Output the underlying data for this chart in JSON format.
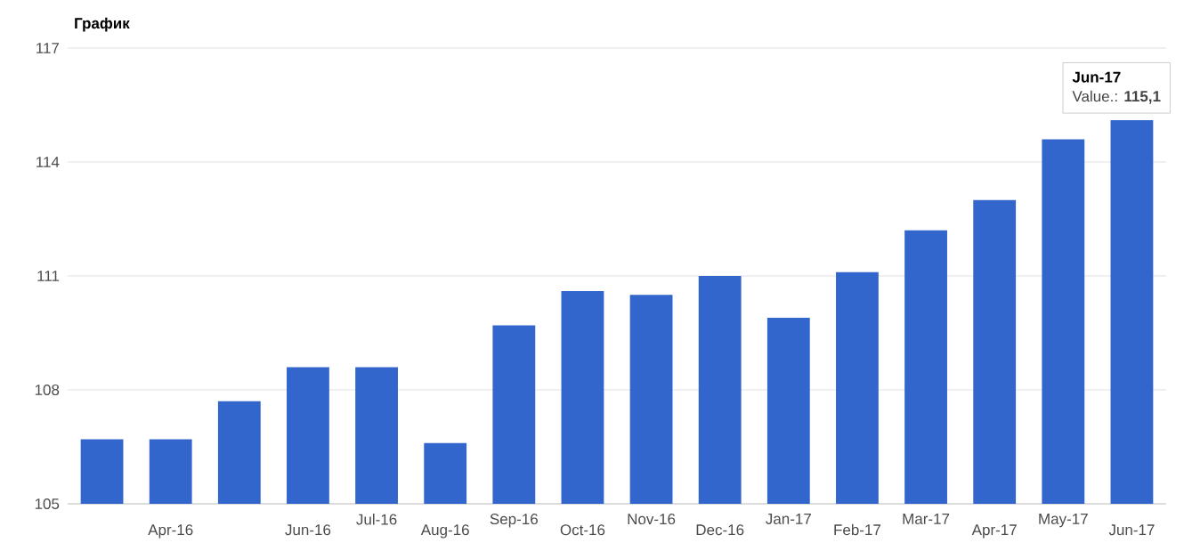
{
  "chart_data": {
    "type": "bar",
    "title": "График",
    "categories": [
      null,
      "Apr-16",
      null,
      "Jun-16",
      "Jul-16",
      "Aug-16",
      "Sep-16",
      "Oct-16",
      "Nov-16",
      "Dec-16",
      "Jan-17",
      "Feb-17",
      "Mar-17",
      "Apr-17",
      "May-17",
      "Jun-17"
    ],
    "values": [
      106.7,
      106.7,
      107.7,
      108.6,
      108.6,
      106.6,
      109.7,
      110.6,
      110.5,
      111.0,
      109.9,
      111.1,
      112.2,
      113.0,
      114.6,
      115.1
    ],
    "color": "#3366cc",
    "ylim": [
      105,
      117
    ],
    "yticks": [
      105,
      108,
      111,
      114,
      117
    ],
    "grid": "y",
    "annotations": [
      {
        "text": "Jun-17",
        "x": "Jun-17",
        "y": 115.1
      },
      {
        "text": "Value.: **115,1**",
        "x": "Jun-17",
        "y": 115.1
      }
    ]
  }
}
